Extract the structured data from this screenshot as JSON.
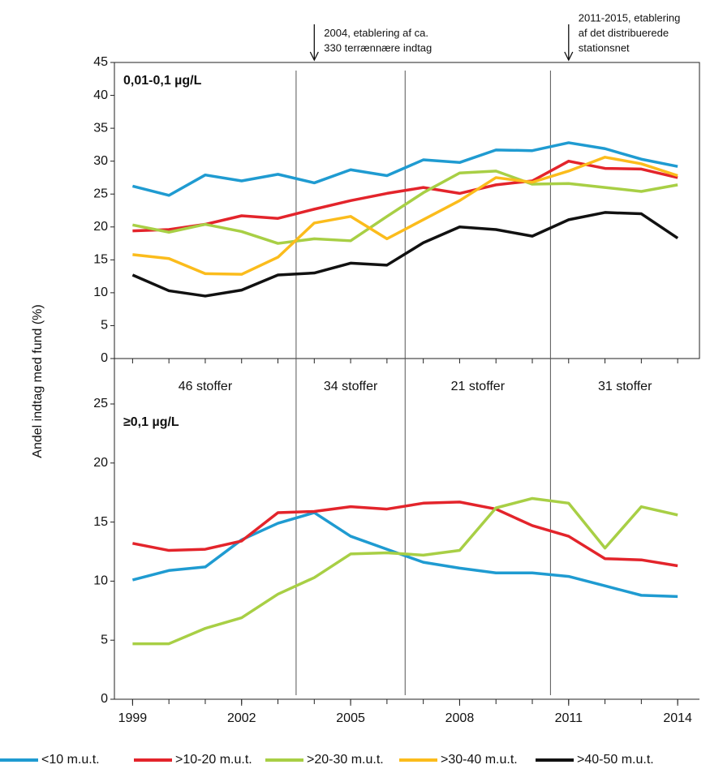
{
  "y_label": "Andel indtag med fund (%)",
  "vlines": [
    2003.5,
    2006.5,
    2010.5
  ],
  "annotations": [
    {
      "x": 2004,
      "lines": [
        "2004, etablering af ca.",
        "330 terrænnære indtag"
      ]
    },
    {
      "x": 2011,
      "lines": [
        "2011-2015, etablering",
        "af det distribuerede",
        "stationsnet"
      ]
    }
  ],
  "periods": [
    "46 stoffer",
    "34 stoffer",
    "21 stoffer",
    "31 stoffer"
  ],
  "chart_data": [
    {
      "type": "line",
      "label": "0,01-0,1 µg/L",
      "x": [
        1999,
        2000,
        2001,
        2002,
        2003,
        2004,
        2005,
        2006,
        2007,
        2008,
        2009,
        2010,
        2011,
        2012,
        2013,
        2014
      ],
      "xlim": [
        1998.5,
        2014.6
      ],
      "ylim": [
        0,
        45
      ],
      "yticks": [
        0,
        5,
        10,
        15,
        20,
        25,
        30,
        35,
        40,
        45
      ],
      "series": [
        {
          "name": "<10 m.u.t.",
          "color": "#1f9bd1",
          "values": [
            26.2,
            24.8,
            27.9,
            27.0,
            28.0,
            26.7,
            28.7,
            27.8,
            30.2,
            29.8,
            31.7,
            31.6,
            32.8,
            31.9,
            30.3,
            29.2
          ]
        },
        {
          "name": ">10-20 m.u.t.",
          "color": "#e3242b",
          "values": [
            19.4,
            19.6,
            20.4,
            21.7,
            21.3,
            22.7,
            24.0,
            25.1,
            26.0,
            25.1,
            26.4,
            27.0,
            30.0,
            28.9,
            28.8,
            27.5
          ]
        },
        {
          "name": ">20-30 m.u.t.",
          "color": "#a8cf45",
          "values": [
            20.3,
            19.2,
            20.4,
            19.3,
            17.5,
            18.2,
            17.9,
            21.6,
            25.2,
            28.2,
            28.5,
            26.5,
            26.6,
            26.0,
            25.4,
            26.4
          ]
        },
        {
          "name": ">30-40 m.u.t.",
          "color": "#fbbc1c",
          "values": [
            15.8,
            15.2,
            12.9,
            12.8,
            15.4,
            20.6,
            21.6,
            18.2,
            21.1,
            24.0,
            27.5,
            26.8,
            28.5,
            30.6,
            29.6,
            27.8
          ]
        },
        {
          "name": ">40-50 m.u.t.",
          "color": "#111111",
          "values": [
            12.7,
            10.3,
            9.5,
            10.4,
            12.7,
            13.0,
            14.5,
            14.2,
            17.6,
            20.0,
            19.6,
            18.6,
            21.1,
            22.2,
            22.0,
            18.3
          ]
        }
      ]
    },
    {
      "type": "line",
      "label": "≥0,1 µg/L",
      "x": [
        1999,
        2000,
        2001,
        2002,
        2003,
        2004,
        2005,
        2006,
        2007,
        2008,
        2009,
        2010,
        2011,
        2012,
        2013,
        2014
      ],
      "xlim": [
        1998.5,
        2014.6
      ],
      "xticks": [
        1999,
        2002,
        2005,
        2008,
        2011,
        2014
      ],
      "ylim": [
        0,
        25
      ],
      "yticks": [
        0,
        5,
        10,
        15,
        20,
        25
      ],
      "series": [
        {
          "color": "#1f9bd1",
          "values": [
            10.1,
            10.9,
            11.2,
            13.5,
            14.9,
            15.8,
            13.8,
            12.7,
            11.6,
            11.1,
            10.7,
            10.7,
            10.4,
            9.6,
            8.8,
            8.7
          ]
        },
        {
          "color": "#e3242b",
          "values": [
            13.2,
            12.6,
            12.7,
            13.4,
            15.8,
            15.9,
            16.3,
            16.1,
            16.6,
            16.7,
            16.1,
            14.7,
            13.8,
            11.9,
            11.8,
            11.3
          ]
        },
        {
          "color": "#a8cf45",
          "values": [
            4.7,
            4.7,
            6.0,
            6.9,
            8.9,
            10.3,
            12.3,
            12.4,
            12.2,
            12.6,
            16.2,
            17.0,
            16.6,
            12.8,
            16.3,
            15.6
          ]
        }
      ]
    }
  ]
}
